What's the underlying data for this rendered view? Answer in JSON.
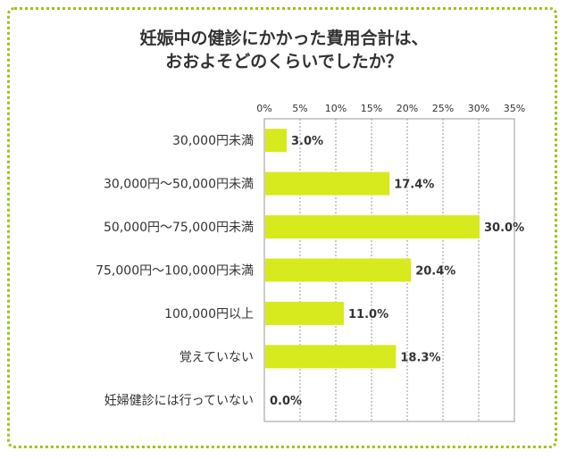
{
  "chart_data": {
    "type": "bar",
    "orientation": "horizontal",
    "title": [
      "妊娠中の健診にかかった費用合計は、",
      "おおよそどのくらいでしたか？"
    ],
    "categories": [
      "30,000円未満",
      "30,000円～50,000円未満",
      "50,000円～75,000円未満",
      "75,000円～100,000円未満",
      "100,000円以上",
      "覚えていない",
      "妊婦健診には行っていない"
    ],
    "values": [
      3.0,
      17.4,
      30.0,
      20.4,
      11.0,
      18.3,
      0.0
    ],
    "value_labels": [
      "3.0%",
      "17.4%",
      "30.0%",
      "20.4%",
      "11.0%",
      "18.3%",
      "0.0%"
    ],
    "xlim": [
      0,
      35
    ],
    "ticks": [
      "0%",
      "5%",
      "10%",
      "15%",
      "20%",
      "25%",
      "30%",
      "35%"
    ],
    "grid": true,
    "colors": {
      "bar": "#d7ea1d",
      "border": "#9cc21a",
      "grid": "#999999"
    }
  }
}
